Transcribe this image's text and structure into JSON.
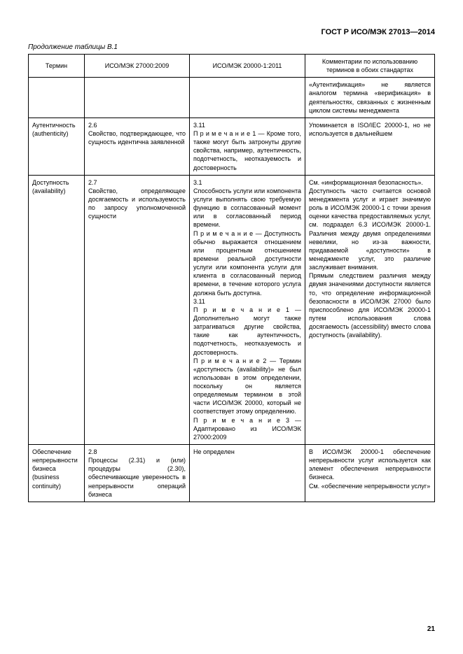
{
  "header": "ГОСТ Р ИСО/МЭК 27013—2014",
  "caption": "Продолжение таблицы В.1",
  "page_number": "21",
  "columns": {
    "c1": "Термин",
    "c2": "ИСО/МЭК 27000:2009",
    "c3": "ИСО/МЭК 20000-1:2011",
    "c4": "Комментарии по использованию терминов в обоих стандартах"
  },
  "rows": [
    {
      "term": "",
      "iso27000": "",
      "iso20000": "",
      "comment": "«Аутентификация» не является аналогом термина «верификация» в деятельностях, связанных с жизненным циклом системы менеджмента"
    },
    {
      "term": "Аутентичность (authenticity)",
      "iso27000_num": "2.6",
      "iso27000": "Свойство, подтверждающее, что сущность идентична заявленной",
      "iso20000_num": "3.11",
      "iso20000_note_label": "П р и м е ч а н и е 1 —",
      "iso20000": "Кроме того, также могут быть затронуты другие свойства, например, аутентичность, подотчетность, неотказуемость и достоверность",
      "comment": "Упоминается в ISO/IEC 20000-1, но не используется в дальнейшем"
    },
    {
      "term": "Доступность (availability)",
      "iso27000_num": "2.7",
      "iso27000": "Свойство, определяющее досягаемость и используемость по запросу уполномоченной сущности",
      "iso20000_num": "3.1",
      "iso20000_p1": "Способность услуги или компонента услуги выполнять свою требуемую функцию в согласованный момент или в согласованный период времени.",
      "iso20000_note1_label": "П р и м е ч а н и е —",
      "iso20000_p2": "Доступность обычно выражается отношением или процентным отношением времени реальной доступности услуги или компонента услуги для клиента в согласованный период времени, в течение которого услуга должна быть доступна.",
      "iso20000_num2": "3.11",
      "iso20000_note2_label": "П р и м е ч а н и е 1 —",
      "iso20000_p3": "Дополнительно могут также затрагиваться другие свойства, такие как аутентичность, подотчетность, неотказуемость и достоверность.",
      "iso20000_note3_label": "П р и м е ч а н и е 2 —",
      "iso20000_p4": "Термин «доступность (availability)» не был использован в этом определении, поскольку он является определяемым термином в этой части ИСО/МЭК 20000, который не соответствует этому определению.",
      "iso20000_note4_label": "П р и м е ч а н и е 3 —",
      "iso20000_p5": "Адаптировано из ИСО/МЭК 27000:2009",
      "comment_p1": "См. «информационная безопасность».",
      "comment_p2": "Доступность часто считается основой менеджмента услуг и играет значимую роль в ИСО/МЭК 20000-1 с точки зрения оценки качества предоставляемых услуг, см. подраздел 6.3 ИСО/МЭК 20000-1. Различия между двумя определениями невелики, но из-за важности, придаваемой «доступности» в менеджменте услуг, это различие заслуживает внимания.",
      "comment_p3": "Прямым следствием различия между двумя значениями доступности является то, что определение информационной безопасности в ИСО/МЭК 27000 было приспособлено для ИСО/МЭК 20000-1 путем использования слова досягаемость (accessibility) вместо слова доступность (availability)."
    },
    {
      "term": "Обеспечение непрерывности бизнеса (business continuity)",
      "iso27000_num": "2.8",
      "iso27000": "Процессы (2.31) и (или) процедуры (2.30), обеспечивающие уверенность в непрерывности операций бизнеса",
      "iso20000": "Не определен",
      "comment": "В ИСО/МЭК 20000-1 обеспечение непрерывности услуг используется как элемент обеспечения непрерывности бизнеса.",
      "comment2": "См. «обеспечение непрерывности услуг»"
    }
  ]
}
